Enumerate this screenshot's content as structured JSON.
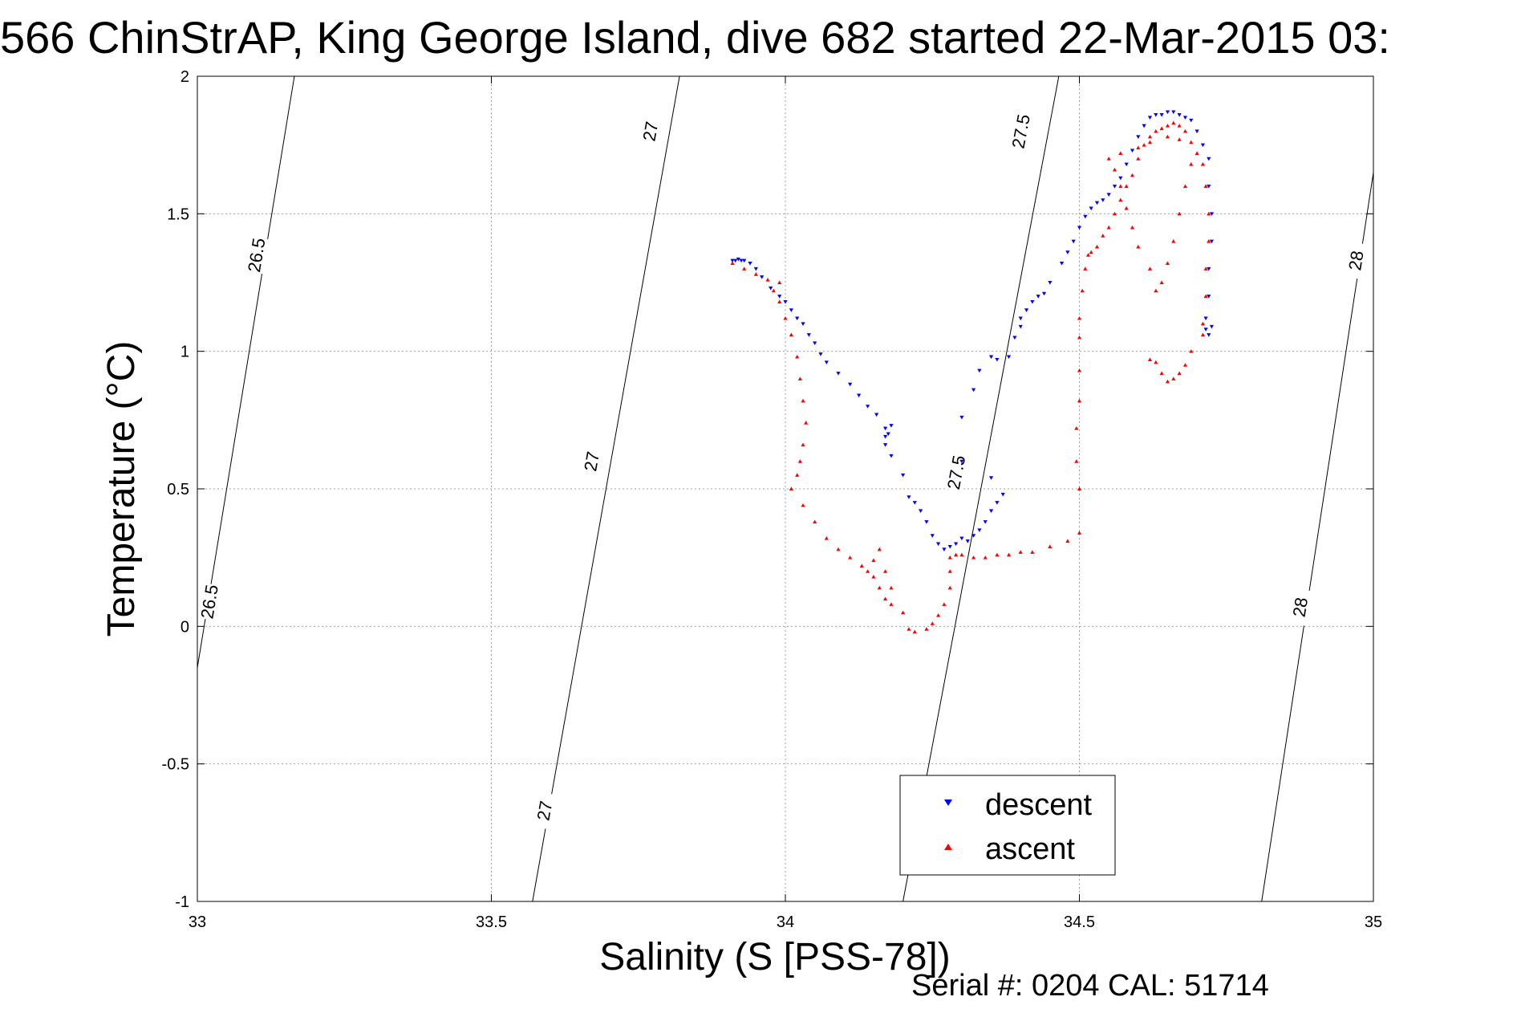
{
  "chart_data": {
    "type": "scatter",
    "title": "566 ChinStrAP, King George Island, dive 682 started 22-Mar-2015 03:",
    "xlabel": "Salinity (S [PSS-78])",
    "ylabel": "Temperature (°C)",
    "xlim": [
      33,
      35
    ],
    "ylim": [
      -1,
      2
    ],
    "xticks": [
      "33",
      "33.5",
      "34",
      "34.5",
      "35"
    ],
    "yticks": [
      "-1",
      "-0.5",
      "0",
      "0.5",
      "1",
      "1.5",
      "2"
    ],
    "grid": true,
    "legend_position": "bottom-right",
    "footer": "Serial #: 0204  CAL: 51714",
    "density_contours": [
      {
        "label": "26.5",
        "points": [
          [
            33.0,
            -0.15
          ],
          [
            33.165,
            2.0
          ]
        ],
        "label_positions": [
          [
            33.1,
            1.35
          ],
          [
            33.02,
            0.09
          ]
        ]
      },
      {
        "label": "27",
        "points": [
          [
            33.57,
            -1.0
          ],
          [
            33.82,
            2.0
          ]
        ],
        "label_positions": [
          [
            33.77,
            1.8
          ],
          [
            33.67,
            0.6
          ],
          [
            33.59,
            -0.67
          ]
        ]
      },
      {
        "label": "27.5",
        "points": [
          [
            34.2,
            -1.0
          ],
          [
            34.465,
            2.0
          ]
        ],
        "label_positions": [
          [
            34.4,
            1.8
          ],
          [
            34.29,
            0.56
          ]
        ]
      },
      {
        "label": "28",
        "points": [
          [
            34.81,
            -1.0
          ],
          [
            35.0,
            1.65
          ]
        ],
        "label_positions": [
          [
            34.97,
            1.33
          ],
          [
            34.875,
            0.07
          ]
        ]
      }
    ],
    "series": [
      {
        "name": "descent",
        "color": "#0000ff",
        "marker": "triangle-down",
        "points": [
          [
            33.91,
            1.33
          ],
          [
            33.915,
            1.33
          ],
          [
            33.92,
            1.335
          ],
          [
            33.925,
            1.33
          ],
          [
            33.93,
            1.33
          ],
          [
            33.94,
            1.32
          ],
          [
            33.95,
            1.3
          ],
          [
            33.96,
            1.27
          ],
          [
            33.975,
            1.23
          ],
          [
            33.99,
            1.2
          ],
          [
            34.0,
            1.18
          ],
          [
            34.01,
            1.15
          ],
          [
            34.02,
            1.12
          ],
          [
            34.03,
            1.1
          ],
          [
            34.04,
            1.06
          ],
          [
            34.05,
            1.03
          ],
          [
            34.06,
            0.99
          ],
          [
            34.07,
            0.96
          ],
          [
            34.09,
            0.92
          ],
          [
            34.11,
            0.88
          ],
          [
            34.125,
            0.84
          ],
          [
            34.14,
            0.8
          ],
          [
            34.155,
            0.77
          ],
          [
            34.17,
            0.72
          ],
          [
            34.17,
            0.69
          ],
          [
            34.17,
            0.66
          ],
          [
            34.175,
            0.7
          ],
          [
            34.18,
            0.73
          ],
          [
            34.18,
            0.62
          ],
          [
            34.2,
            0.55
          ],
          [
            34.21,
            0.47
          ],
          [
            34.22,
            0.45
          ],
          [
            34.23,
            0.42
          ],
          [
            34.24,
            0.38
          ],
          [
            34.25,
            0.33
          ],
          [
            34.26,
            0.3
          ],
          [
            34.27,
            0.28
          ],
          [
            34.28,
            0.29
          ],
          [
            34.29,
            0.3
          ],
          [
            34.3,
            0.32
          ],
          [
            34.31,
            0.31
          ],
          [
            34.32,
            0.33
          ],
          [
            34.33,
            0.35
          ],
          [
            34.34,
            0.38
          ],
          [
            34.35,
            0.42
          ],
          [
            34.36,
            0.45
          ],
          [
            34.37,
            0.48
          ],
          [
            34.35,
            0.54
          ],
          [
            34.3,
            0.6
          ],
          [
            34.3,
            0.76
          ],
          [
            34.32,
            0.86
          ],
          [
            34.33,
            0.93
          ],
          [
            34.35,
            0.98
          ],
          [
            34.36,
            0.97
          ],
          [
            34.38,
            0.98
          ],
          [
            34.39,
            1.05
          ],
          [
            34.4,
            1.09
          ],
          [
            34.4,
            1.12
          ],
          [
            34.41,
            1.15
          ],
          [
            34.42,
            1.18
          ],
          [
            34.43,
            1.2
          ],
          [
            34.44,
            1.21
          ],
          [
            34.45,
            1.25
          ],
          [
            34.47,
            1.32
          ],
          [
            34.48,
            1.36
          ],
          [
            34.49,
            1.4
          ],
          [
            34.5,
            1.45
          ],
          [
            34.51,
            1.49
          ],
          [
            34.52,
            1.52
          ],
          [
            34.53,
            1.54
          ],
          [
            34.54,
            1.55
          ],
          [
            34.55,
            1.57
          ],
          [
            34.56,
            1.6
          ],
          [
            34.57,
            1.63
          ],
          [
            34.58,
            1.68
          ],
          [
            34.59,
            1.73
          ],
          [
            34.6,
            1.78
          ],
          [
            34.61,
            1.82
          ],
          [
            34.62,
            1.85
          ],
          [
            34.63,
            1.86
          ],
          [
            34.64,
            1.86
          ],
          [
            34.65,
            1.87
          ],
          [
            34.66,
            1.87
          ],
          [
            34.67,
            1.86
          ],
          [
            34.68,
            1.85
          ],
          [
            34.69,
            1.84
          ],
          [
            34.7,
            1.8
          ],
          [
            34.71,
            1.75
          ],
          [
            34.72,
            1.7
          ],
          [
            34.72,
            1.6
          ],
          [
            34.725,
            1.5
          ],
          [
            34.725,
            1.4
          ],
          [
            34.72,
            1.3
          ],
          [
            34.72,
            1.2
          ],
          [
            34.715,
            1.12
          ],
          [
            34.715,
            1.08
          ],
          [
            34.72,
            1.06
          ],
          [
            34.725,
            1.09
          ]
        ]
      },
      {
        "name": "ascent",
        "color": "#ff0000",
        "marker": "triangle-up",
        "points": [
          [
            33.91,
            1.32
          ],
          [
            33.93,
            1.3
          ],
          [
            33.95,
            1.28
          ],
          [
            33.97,
            1.26
          ],
          [
            33.99,
            1.25
          ],
          [
            33.98,
            1.22
          ],
          [
            33.99,
            1.18
          ],
          [
            34.0,
            1.12
          ],
          [
            34.01,
            1.06
          ],
          [
            34.02,
            0.98
          ],
          [
            34.025,
            0.9
          ],
          [
            34.03,
            0.82
          ],
          [
            34.035,
            0.74
          ],
          [
            34.03,
            0.66
          ],
          [
            34.025,
            0.6
          ],
          [
            34.02,
            0.55
          ],
          [
            34.01,
            0.5
          ],
          [
            34.03,
            0.44
          ],
          [
            34.05,
            0.38
          ],
          [
            34.07,
            0.32
          ],
          [
            34.09,
            0.28
          ],
          [
            34.11,
            0.25
          ],
          [
            34.13,
            0.22
          ],
          [
            34.15,
            0.18
          ],
          [
            34.16,
            0.14
          ],
          [
            34.17,
            0.1
          ],
          [
            34.18,
            0.08
          ],
          [
            34.17,
            0.2
          ],
          [
            34.16,
            0.28
          ],
          [
            34.15,
            0.24
          ],
          [
            34.14,
            0.2
          ],
          [
            34.18,
            0.14
          ],
          [
            34.2,
            0.05
          ],
          [
            34.21,
            -0.01
          ],
          [
            34.22,
            -0.02
          ],
          [
            34.24,
            -0.01
          ],
          [
            34.25,
            0.01
          ],
          [
            34.26,
            0.04
          ],
          [
            34.27,
            0.08
          ],
          [
            34.28,
            0.14
          ],
          [
            34.28,
            0.2
          ],
          [
            34.28,
            0.25
          ],
          [
            34.29,
            0.26
          ],
          [
            34.3,
            0.26
          ],
          [
            34.32,
            0.25
          ],
          [
            34.34,
            0.25
          ],
          [
            34.36,
            0.26
          ],
          [
            34.38,
            0.26
          ],
          [
            34.4,
            0.27
          ],
          [
            34.42,
            0.27
          ],
          [
            34.45,
            0.29
          ],
          [
            34.48,
            0.31
          ],
          [
            34.5,
            0.34
          ],
          [
            34.5,
            0.5
          ],
          [
            34.495,
            0.6
          ],
          [
            34.495,
            0.72
          ],
          [
            34.5,
            0.82
          ],
          [
            34.5,
            0.93
          ],
          [
            34.5,
            1.05
          ],
          [
            34.5,
            1.12
          ],
          [
            34.505,
            1.22
          ],
          [
            34.51,
            1.3
          ],
          [
            34.515,
            1.35
          ],
          [
            34.52,
            1.36
          ],
          [
            34.53,
            1.38
          ],
          [
            34.54,
            1.42
          ],
          [
            34.55,
            1.45
          ],
          [
            34.56,
            1.5
          ],
          [
            34.57,
            1.55
          ],
          [
            34.58,
            1.6
          ],
          [
            34.59,
            1.64
          ],
          [
            34.6,
            1.7
          ],
          [
            34.61,
            1.75
          ],
          [
            34.62,
            1.78
          ],
          [
            34.63,
            1.8
          ],
          [
            34.64,
            1.81
          ],
          [
            34.65,
            1.82
          ],
          [
            34.66,
            1.83
          ],
          [
            34.67,
            1.82
          ],
          [
            34.68,
            1.8
          ],
          [
            34.69,
            1.76
          ],
          [
            34.69,
            1.68
          ],
          [
            34.68,
            1.6
          ],
          [
            34.67,
            1.5
          ],
          [
            34.66,
            1.4
          ],
          [
            34.65,
            1.32
          ],
          [
            34.64,
            1.25
          ],
          [
            34.63,
            1.22
          ],
          [
            34.62,
            1.3
          ],
          [
            34.6,
            1.38
          ],
          [
            34.59,
            1.45
          ],
          [
            34.58,
            1.52
          ],
          [
            34.57,
            1.6
          ],
          [
            34.56,
            1.66
          ],
          [
            34.55,
            1.7
          ],
          [
            34.57,
            1.72
          ],
          [
            34.6,
            1.74
          ],
          [
            34.62,
            1.76
          ],
          [
            34.65,
            1.78
          ],
          [
            34.67,
            1.77
          ],
          [
            34.7,
            1.72
          ],
          [
            34.71,
            1.68
          ],
          [
            34.715,
            1.6
          ],
          [
            34.72,
            1.5
          ],
          [
            34.72,
            1.4
          ],
          [
            34.715,
            1.3
          ],
          [
            34.715,
            1.2
          ],
          [
            34.71,
            1.1
          ],
          [
            34.71,
            1.06
          ],
          [
            34.69,
            1.0
          ],
          [
            34.68,
            0.95
          ],
          [
            34.67,
            0.92
          ],
          [
            34.66,
            0.9
          ],
          [
            34.65,
            0.89
          ],
          [
            34.64,
            0.92
          ],
          [
            34.63,
            0.96
          ],
          [
            34.62,
            0.97
          ]
        ]
      }
    ]
  }
}
